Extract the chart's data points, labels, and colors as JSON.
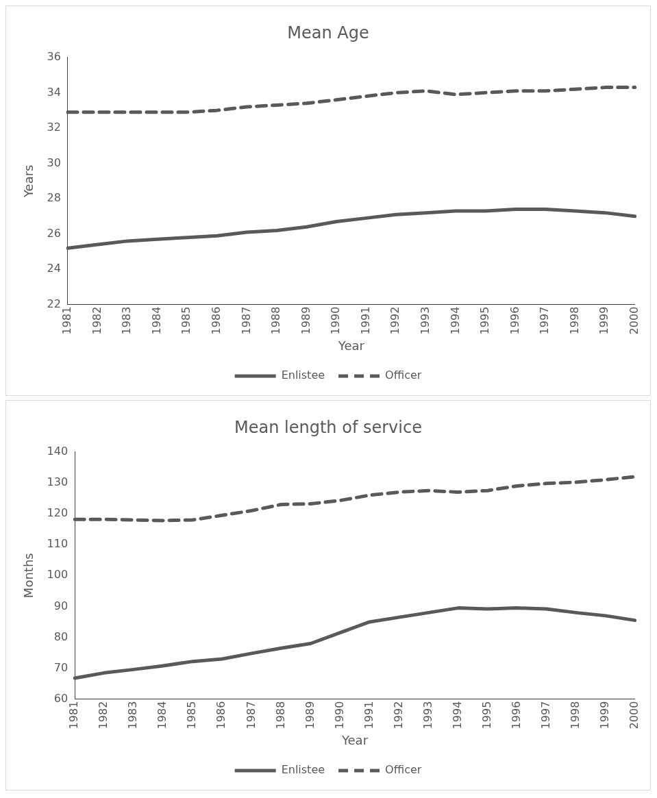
{
  "chart_data": [
    {
      "type": "line",
      "title": "Mean Age",
      "xlabel": "Year",
      "ylabel": "Years",
      "categories": [
        "1981",
        "1982",
        "1983",
        "1984",
        "1985",
        "1986",
        "1987",
        "1988",
        "1989",
        "1990",
        "1991",
        "1992",
        "1993",
        "1994",
        "1995",
        "1996",
        "1997",
        "1998",
        "1999",
        "2000"
      ],
      "series": [
        {
          "name": "Enlistee",
          "color": "#595959",
          "line_style": "solid",
          "values": [
            25.2,
            25.4,
            25.6,
            25.7,
            25.8,
            25.9,
            26.1,
            26.2,
            26.4,
            26.7,
            26.9,
            27.1,
            27.2,
            27.3,
            27.3,
            27.4,
            27.4,
            27.3,
            27.2,
            27.0
          ]
        },
        {
          "name": "Officer",
          "color": "#595959",
          "line_style": "dashed",
          "values": [
            32.9,
            32.9,
            32.9,
            32.9,
            32.9,
            33.0,
            33.2,
            33.3,
            33.4,
            33.6,
            33.8,
            34.0,
            34.1,
            33.9,
            34.0,
            34.1,
            34.1,
            34.2,
            34.3,
            34.3
          ]
        }
      ],
      "ylim": [
        22,
        36
      ],
      "yticks": [
        22,
        24,
        26,
        28,
        30,
        32,
        34,
        36
      ],
      "grid": false,
      "legend": "bottom",
      "marker": "none"
    },
    {
      "type": "line",
      "title": "Mean length of service",
      "xlabel": "Year",
      "ylabel": "Months",
      "categories": [
        "1981",
        "1982",
        "1983",
        "1984",
        "1985",
        "1986",
        "1987",
        "1988",
        "1989",
        "1990",
        "1991",
        "1992",
        "1993",
        "1994",
        "1995",
        "1996",
        "1997",
        "1998",
        "1999",
        "2000"
      ],
      "series": [
        {
          "name": "Enlistee",
          "color": "#595959",
          "line_style": "solid",
          "values": [
            66.8,
            68.5,
            69.6,
            70.8,
            72.2,
            73,
            74.8,
            76.5,
            78,
            81.5,
            85,
            86.5,
            88,
            89.5,
            89.2,
            89.5,
            89.2,
            88,
            87,
            85.5
          ]
        },
        {
          "name": "Officer",
          "color": "#595959",
          "line_style": "dashed",
          "values": [
            118.2,
            118.2,
            118,
            117.8,
            118,
            119.5,
            121,
            123,
            123.2,
            124.3,
            126,
            127,
            127.5,
            127,
            127.5,
            129,
            129.8,
            130.2,
            131,
            132
          ]
        }
      ],
      "ylim": [
        60,
        140
      ],
      "yticks": [
        60,
        70,
        80,
        90,
        100,
        110,
        120,
        130,
        140
      ],
      "grid": false,
      "legend": "bottom",
      "marker": "none"
    }
  ]
}
